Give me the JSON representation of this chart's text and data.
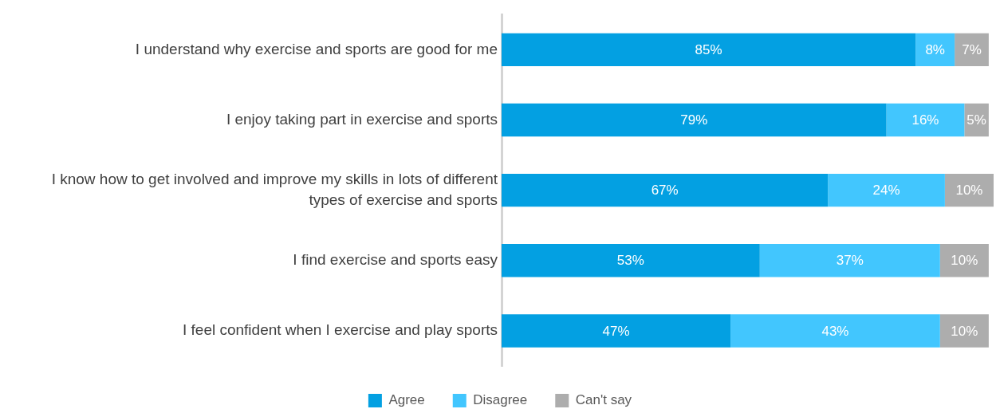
{
  "chart_data": {
    "type": "bar",
    "orientation": "horizontal",
    "stacked": true,
    "categories": [
      "I understand why exercise and sports are good for me",
      "I enjoy taking part in exercise and sports",
      "I know how to get involved and improve my skills in lots of different types of exercise and sports",
      "I find exercise and sports easy",
      "I feel confident when I exercise and play sports"
    ],
    "series": [
      {
        "name": "Agree",
        "color": "#03a0e2",
        "values": [
          85,
          79,
          67,
          53,
          47
        ],
        "value_labels": [
          "85%",
          "79%",
          "67%",
          "53%",
          "47%"
        ]
      },
      {
        "name": "Disagree",
        "color": "#42c6fe",
        "values": [
          8,
          16,
          24,
          37,
          43
        ],
        "value_labels": [
          "8%",
          "16%",
          "24%",
          "37%",
          "43%"
        ]
      },
      {
        "name": "Can't say",
        "color": "#adadad",
        "values": [
          7,
          5,
          10,
          10,
          10
        ],
        "value_labels": [
          "7%",
          "5%",
          "10%",
          "10%",
          "10%"
        ]
      }
    ],
    "xlim": [
      0,
      101
    ],
    "legend": "bottom",
    "tick_labels": "y"
  }
}
